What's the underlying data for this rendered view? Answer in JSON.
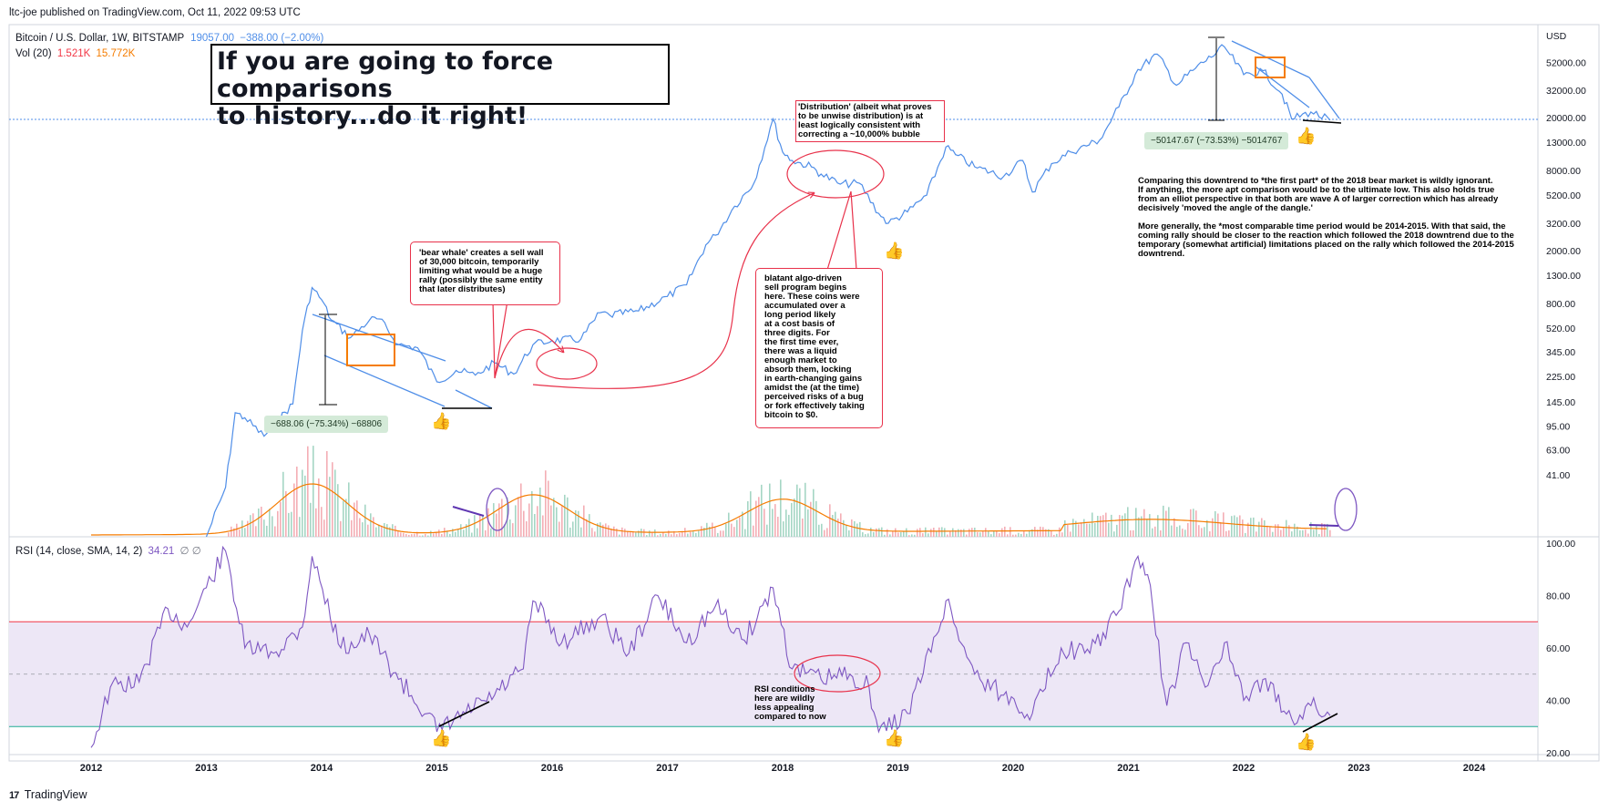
{
  "publisher_line": "ltc-joe published on TradingView.com, Oct 11, 2022 09:53 UTC",
  "symbol": {
    "name": "Bitcoin / U.S. Dollar, 1W, BITSTAMP",
    "price": "19057.00",
    "change": "−388.00 (−2.00%)"
  },
  "volume_legend": {
    "label": "Vol (20)",
    "value1": "1.521K",
    "value2": "15.772K"
  },
  "rsi_legend": {
    "label": "RSI (14, close, SMA, 14, 2)",
    "value": "34.21",
    "icons": "∅ ∅"
  },
  "currency": "USD",
  "footer": {
    "brand": "TradingView",
    "logo_text": "17"
  },
  "annotations": {
    "title": "If you are going to force comparisons\nto history...do it right!",
    "measure_2014": "−688.06 (−75.34%) −68806",
    "measure_2022": "−50147.67 (−73.53%) −5014767",
    "bear_whale": "'bear whale' creates a sell wall\nof 30,000 bitcoin, temporarily\nlimiting what would be a huge\nrally (possibly the same entity\nthat later distributes)",
    "distribution": "'Distribution' (albeit what proves\nto be unwise distribution) is at\nleast logically consistent with\ncorrecting a ~10,000% bubble",
    "algo": "blatant algo-driven\nsell program begins\nhere. These coins were\naccumulated over a\nlong period likely\nat a cost basis of\nthree digits. For\nthe first time ever,\nthere was a liquid\nenough market to\nabsorb them, locking\nin earth-changing gains\namidst the (at the time)\nperceived risks of a bug\nor fork effectively taking\nbitcoin to $0.",
    "comparison_p1": "Comparing this downtrend to *the first part* of the 2018 bear market is wildly ignorant.\nIf anything, the more apt comparison would be to the ultimate low. This also holds true\nfrom an elliot perspective in that both are wave A of larger correction which has already\ndecisively 'moved the angle of the dangle.'",
    "comparison_p2": "More generally, the *most comparable time period would be 2014-2015. With that said, the\ncoming rally should be closer to the reaction which followed the 2018 downtrend due to the\ntemporary (somewhat artificial) limitations placed on the rally which followed the 2014-2015\ndowntrend.",
    "rsi_note": "RSI conditions\nhere are wildly\nless appealing\ncompared to now",
    "thumb_glyph": "👍"
  },
  "colors": {
    "price_line": "#4f8ee8",
    "rsi_line": "#7e57c2",
    "rsi_band": "#ede7f6",
    "overbought": "#f23645",
    "oversold": "#22ab94",
    "annotation_red": "#e8314a",
    "orange_box": "#f57c00",
    "vol_ma": "#f57c00",
    "trendline": "#4f8ee8"
  },
  "chart_data": [
    {
      "type": "line",
      "title": "Bitcoin / U.S. Dollar, 1W, BITSTAMP",
      "y_scale": "log",
      "ylim": [
        14,
        100000
      ],
      "x_tick_labels": [
        "2012",
        "2013",
        "2014",
        "2015",
        "2016",
        "2017",
        "2018",
        "2019",
        "2020",
        "2021",
        "2022",
        "2023",
        "2024"
      ],
      "y_tick_labels": [
        "52000.00",
        "32000.00",
        "20000.00",
        "13000.00",
        "8000.00",
        "5200.00",
        "3200.00",
        "2000.00",
        "1300.00",
        "800.00",
        "520.00",
        "345.00",
        "225.00",
        "145.00",
        "95.00",
        "63.00",
        "41.00"
      ],
      "y_ticks": [
        52000,
        32000,
        20000,
        13000,
        8000,
        5200,
        3200,
        2000,
        1300,
        800,
        520,
        345,
        225,
        145,
        95,
        63,
        41
      ],
      "series": [
        {
          "x": [
            "2013-01",
            "2013-03",
            "2013-04",
            "2013-05",
            "2013-07",
            "2013-10",
            "2013-11",
            "2013-12",
            "2014-01",
            "2014-02",
            "2014-04",
            "2014-06",
            "2014-07",
            "2014-09",
            "2014-11",
            "2015-01",
            "2015-03",
            "2015-05",
            "2015-07",
            "2015-09",
            "2015-11",
            "2016-01",
            "2016-04",
            "2016-06",
            "2016-07",
            "2016-10",
            "2017-01",
            "2017-03",
            "2017-05",
            "2017-06",
            "2017-08",
            "2017-10",
            "2017-12",
            "2018-01",
            "2018-02",
            "2018-04",
            "2018-05",
            "2018-07",
            "2018-09",
            "2018-11",
            "2018-12",
            "2019-02",
            "2019-04",
            "2019-06",
            "2019-07",
            "2019-09",
            "2019-12",
            "2020-02",
            "2020-03",
            "2020-05",
            "2020-07",
            "2020-10",
            "2020-12",
            "2021-02",
            "2021-04",
            "2021-06",
            "2021-08",
            "2021-11",
            "2022-01",
            "2022-03",
            "2022-05",
            "2022-06",
            "2022-08",
            "2022-10"
          ],
          "y": [
            14,
            33,
            120,
            110,
            80,
            140,
            500,
            1050,
            850,
            600,
            440,
            600,
            610,
            390,
            370,
            205,
            250,
            230,
            285,
            235,
            390,
            420,
            430,
            680,
            650,
            700,
            900,
            1100,
            2200,
            2600,
            4300,
            6400,
            19500,
            11000,
            9500,
            8500,
            7500,
            6300,
            6400,
            3800,
            3200,
            3900,
            5200,
            12000,
            10500,
            8500,
            7200,
            9500,
            5500,
            9000,
            11000,
            13500,
            24000,
            46000,
            60000,
            35000,
            47000,
            68000,
            42000,
            45000,
            30000,
            19500,
            22000,
            19057
          ]
        }
      ]
    },
    {
      "type": "bar",
      "title": "Vol (20)",
      "values_note": "weekly volume bars with 20-period moving average",
      "ma_peaks": [
        {
          "x": "2013-12",
          "label": "peak"
        },
        {
          "x": "2015-11",
          "label": "peak"
        },
        {
          "x": "2018-01",
          "label": "peak"
        }
      ]
    },
    {
      "type": "line",
      "title": "RSI (14, close, SMA, 14, 2)",
      "ylim": [
        20,
        100
      ],
      "y_tick_labels": [
        "100.00",
        "80.00",
        "60.00",
        "40.00",
        "20.00"
      ],
      "y_ticks": [
        100,
        80,
        60,
        40,
        20
      ],
      "bands": {
        "overbought": 70,
        "middle": 50,
        "oversold": 30
      },
      "series": [
        {
          "x": [
            "2012-01",
            "2012-03",
            "2012-06",
            "2012-09",
            "2012-11",
            "2013-01",
            "2013-03",
            "2013-05",
            "2013-08",
            "2013-11",
            "2013-12",
            "2014-03",
            "2014-06",
            "2014-09",
            "2014-12",
            "2015-01",
            "2015-04",
            "2015-07",
            "2015-10",
            "2015-11",
            "2016-02",
            "2016-06",
            "2016-09",
            "2016-12",
            "2017-03",
            "2017-06",
            "2017-09",
            "2017-12",
            "2018-02",
            "2018-05",
            "2018-08",
            "2018-10",
            "2018-11",
            "2019-02",
            "2019-05",
            "2019-06",
            "2019-09",
            "2019-12",
            "2020-03",
            "2020-06",
            "2020-09",
            "2020-12",
            "2021-02",
            "2021-03",
            "2021-05",
            "2021-07",
            "2021-09",
            "2021-11",
            "2022-01",
            "2022-03",
            "2022-06",
            "2022-08",
            "2022-10"
          ],
          "y": [
            22,
            45,
            47,
            75,
            68,
            83,
            97,
            60,
            58,
            68,
            95,
            60,
            65,
            48,
            35,
            28,
            35,
            42,
            52,
            78,
            62,
            72,
            58,
            80,
            62,
            76,
            63,
            83,
            52,
            48,
            50,
            45,
            28,
            35,
            65,
            78,
            50,
            42,
            35,
            60,
            58,
            74,
            95,
            88,
            38,
            62,
            45,
            62,
            40,
            48,
            33,
            38,
            34.21
          ]
        }
      ]
    }
  ]
}
